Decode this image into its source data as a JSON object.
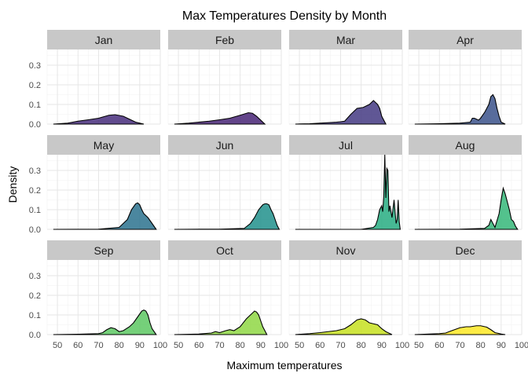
{
  "chart_data": {
    "type": "area",
    "title": "Max Temperatures Density by Month",
    "xlabel": "Maximum temperatures",
    "ylabel": "Density",
    "xlim": [
      45,
      100
    ],
    "ylim": [
      0,
      0.38
    ],
    "x_ticks": [
      50,
      60,
      70,
      80,
      90,
      100
    ],
    "y_ticks": [
      0.0,
      0.1,
      0.2,
      0.3
    ],
    "y_tick_labels": [
      "0.0",
      "0.1",
      "0.2",
      "0.3"
    ],
    "grid": true,
    "layout": {
      "rows": 3,
      "cols": 4
    },
    "panels": [
      {
        "label": "Jan",
        "color": "#472D7B",
        "x": [
          48,
          55,
          60,
          65,
          70,
          75,
          78,
          82,
          85,
          88,
          92
        ],
        "y": [
          0,
          0.005,
          0.015,
          0.022,
          0.03,
          0.045,
          0.048,
          0.04,
          0.025,
          0.01,
          0
        ]
      },
      {
        "label": "Feb",
        "color": "#482475",
        "x": [
          48,
          55,
          60,
          65,
          70,
          75,
          80,
          84,
          86,
          88,
          92
        ],
        "y": [
          0,
          0.005,
          0.01,
          0.015,
          0.022,
          0.03,
          0.045,
          0.058,
          0.055,
          0.04,
          0
        ]
      },
      {
        "label": "Mar",
        "color": "#443983",
        "x": [
          48,
          55,
          60,
          65,
          68,
          70,
          72,
          75,
          78,
          81,
          84,
          86,
          87,
          88,
          89,
          90,
          92
        ],
        "y": [
          0,
          0.002,
          0.005,
          0.008,
          0.01,
          0.012,
          0.015,
          0.05,
          0.08,
          0.085,
          0.1,
          0.12,
          0.11,
          0.1,
          0.08,
          0.04,
          0
        ]
      },
      {
        "label": "Apr",
        "color": "#3B528B",
        "x": [
          48,
          60,
          70,
          75,
          76,
          77,
          78,
          79,
          80,
          82,
          84,
          85,
          86,
          87,
          88,
          89,
          90,
          92
        ],
        "y": [
          0,
          0.002,
          0.005,
          0.01,
          0.03,
          0.03,
          0.025,
          0.02,
          0.03,
          0.06,
          0.1,
          0.14,
          0.15,
          0.13,
          0.08,
          0.04,
          0.01,
          0
        ]
      },
      {
        "label": "May",
        "color": "#2C728E",
        "x": [
          48,
          70,
          80,
          84,
          86,
          88,
          89,
          90,
          91,
          92,
          94,
          96,
          98
        ],
        "y": [
          0,
          0.001,
          0.01,
          0.05,
          0.1,
          0.13,
          0.135,
          0.125,
          0.1,
          0.08,
          0.06,
          0.03,
          0
        ]
      },
      {
        "label": "Jun",
        "color": "#21908C",
        "x": [
          48,
          70,
          82,
          85,
          87,
          89,
          91,
          92,
          93,
          94,
          95,
          96,
          97,
          98,
          99
        ],
        "y": [
          0,
          0.001,
          0.005,
          0.03,
          0.06,
          0.1,
          0.125,
          0.13,
          0.13,
          0.125,
          0.1,
          0.08,
          0.05,
          0.02,
          0
        ]
      },
      {
        "label": "Jul",
        "color": "#27AD81",
        "x": [
          48,
          80,
          86,
          87,
          88,
          89,
          90,
          90.5,
          91,
          91.5,
          92,
          92.5,
          93,
          93.5,
          94,
          95,
          96,
          97,
          97.5,
          98,
          98.5,
          99
        ],
        "y": [
          0,
          0,
          0.01,
          0.02,
          0.05,
          0.1,
          0.12,
          0.09,
          0.17,
          0.38,
          0.16,
          0.31,
          0.3,
          0.09,
          0.12,
          0.06,
          0.15,
          0.03,
          0.05,
          0.15,
          0.04,
          0
        ]
      },
      {
        "label": "Aug",
        "color": "#35B779",
        "x": [
          48,
          70,
          82,
          84,
          85,
          86,
          87,
          89,
          90,
          91,
          92,
          93,
          94,
          95,
          96,
          97,
          98
        ],
        "y": [
          0,
          0.001,
          0.005,
          0.02,
          0.05,
          0.03,
          0.01,
          0.08,
          0.15,
          0.21,
          0.18,
          0.14,
          0.1,
          0.05,
          0.04,
          0.015,
          0
        ]
      },
      {
        "label": "Sep",
        "color": "#5DC863",
        "x": [
          48,
          60,
          70,
          72,
          74,
          76,
          78,
          80,
          82,
          85,
          87,
          89,
          91,
          92,
          93,
          94,
          95,
          96,
          98
        ],
        "y": [
          0,
          0.002,
          0.005,
          0.01,
          0.025,
          0.035,
          0.03,
          0.015,
          0.02,
          0.04,
          0.06,
          0.09,
          0.12,
          0.125,
          0.12,
          0.1,
          0.06,
          0.03,
          0
        ]
      },
      {
        "label": "Oct",
        "color": "#8FD744",
        "x": [
          48,
          60,
          66,
          68,
          70,
          73,
          75,
          77,
          80,
          83,
          85,
          87,
          88,
          89,
          90,
          91,
          93
        ],
        "y": [
          0,
          0.003,
          0.008,
          0.015,
          0.01,
          0.02,
          0.025,
          0.02,
          0.04,
          0.08,
          0.1,
          0.12,
          0.115,
          0.1,
          0.07,
          0.04,
          0
        ]
      },
      {
        "label": "Nov",
        "color": "#C7E020",
        "x": [
          48,
          55,
          60,
          64,
          68,
          72,
          75,
          78,
          80,
          82,
          84,
          86,
          88,
          90,
          92,
          95
        ],
        "y": [
          0,
          0.005,
          0.01,
          0.015,
          0.02,
          0.03,
          0.05,
          0.075,
          0.08,
          0.075,
          0.06,
          0.055,
          0.05,
          0.03,
          0.015,
          0
        ]
      },
      {
        "label": "Dec",
        "color": "#FDE725",
        "x": [
          48,
          55,
          60,
          63,
          66,
          70,
          73,
          75,
          78,
          80,
          83,
          85,
          87,
          90,
          92
        ],
        "y": [
          0,
          0.003,
          0.005,
          0.008,
          0.02,
          0.035,
          0.04,
          0.04,
          0.045,
          0.045,
          0.038,
          0.025,
          0.01,
          0.003,
          0
        ]
      }
    ]
  }
}
